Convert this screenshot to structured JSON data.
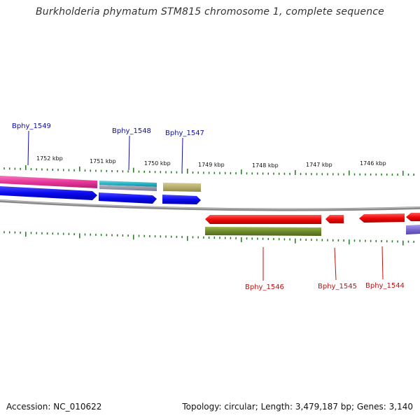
{
  "title": "Burkholderia phymatum STM815 chromosome 1, complete sequence",
  "footer": {
    "accession": "Accession: NC_010622",
    "stats": "Topology: circular; Length: 3,479,187 bp; Genes: 3,140"
  },
  "scale_labels": [
    "1752 kbp",
    "1751 kbp",
    "1750 kbp",
    "1749 kbp",
    "1748 kbp",
    "1747 kbp",
    "1746 kbp"
  ],
  "gene_labels": [
    {
      "name": "Bphy_1549",
      "color": "#1010a0"
    },
    {
      "name": "Bphy_1548",
      "color": "#1010a0"
    },
    {
      "name": "Bphy_1547",
      "color": "#1010a0"
    },
    {
      "name": "Bphy_1546",
      "color": "#c01010"
    },
    {
      "name": "Bphy_1545",
      "color": "#c01010"
    },
    {
      "name": "Bphy_1544",
      "color": "#c01010"
    }
  ],
  "colors": {
    "backbone": "#8a8a8a",
    "ticks": "#1f7a1f",
    "forward_cds": "#0a0aee",
    "reverse_cds": "#ee0a0a",
    "gene_magenta": "#e8359a",
    "gene_cyan": "#29b3c4",
    "gene_khaki": "#b7ad6a",
    "gene_olive": "#6e8a2a",
    "gene_lavender": "#7a6ad0"
  }
}
